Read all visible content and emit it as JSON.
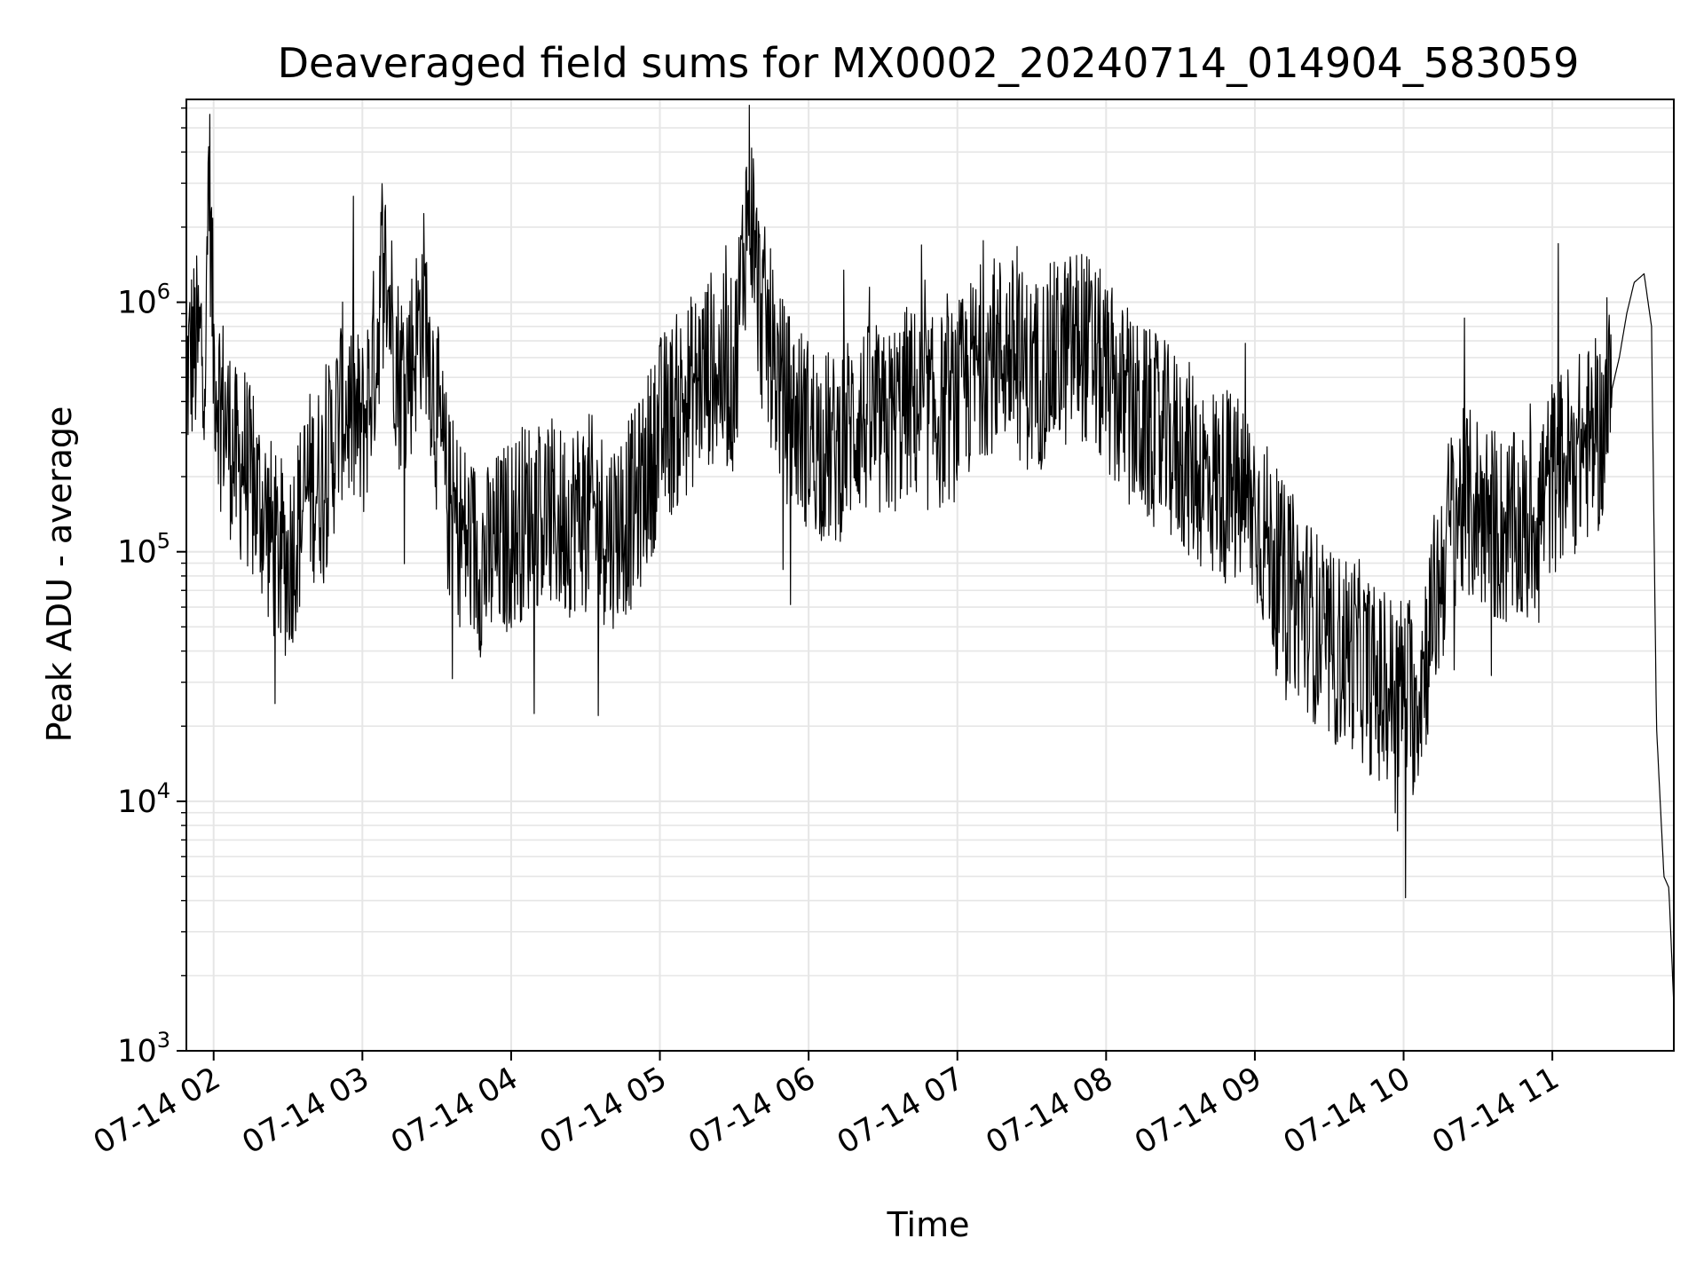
{
  "chart_data": {
    "type": "line",
    "title": "Deaveraged field sums for MX0002_20240714_014904_583059",
    "xlabel": "Time",
    "ylabel": "Peak ADU - average",
    "yscale": "log",
    "ylim": [
      1000,
      6500000
    ],
    "xlim": [
      "2024-07-14T01:49:00",
      "2024-07-14T11:49:00"
    ],
    "grid": true,
    "line_color": "#000000",
    "grid_color": "#e6e6e6",
    "x_ticks": [
      {
        "time": "2024-07-14T02:00:00",
        "label": "07-14 02"
      },
      {
        "time": "2024-07-14T03:00:00",
        "label": "07-14 03"
      },
      {
        "time": "2024-07-14T04:00:00",
        "label": "07-14 04"
      },
      {
        "time": "2024-07-14T05:00:00",
        "label": "07-14 05"
      },
      {
        "time": "2024-07-14T06:00:00",
        "label": "07-14 06"
      },
      {
        "time": "2024-07-14T07:00:00",
        "label": "07-14 07"
      },
      {
        "time": "2024-07-14T08:00:00",
        "label": "07-14 08"
      },
      {
        "time": "2024-07-14T09:00:00",
        "label": "07-14 09"
      },
      {
        "time": "2024-07-14T10:00:00",
        "label": "07-14 10"
      },
      {
        "time": "2024-07-14T11:00:00",
        "label": "07-14 11"
      }
    ],
    "y_ticks": [
      {
        "value": 1000,
        "base": "10",
        "exp": "3"
      },
      {
        "value": 10000,
        "base": "10",
        "exp": "4"
      },
      {
        "value": 100000,
        "base": "10",
        "exp": "5"
      },
      {
        "value": 1000000,
        "base": "10",
        "exp": "6"
      }
    ],
    "series": [
      {
        "x": [
          "2024-07-14T01:49:00",
          "2024-07-14T01:51:00",
          "2024-07-14T01:54:00",
          "2024-07-14T01:56:00",
          "2024-07-14T01:57:00",
          "2024-07-14T01:58:00",
          "2024-07-14T02:00:00",
          "2024-07-14T02:03:00",
          "2024-07-14T02:06:00",
          "2024-07-14T02:10:00",
          "2024-07-14T02:12:00",
          "2024-07-14T02:15:00",
          "2024-07-14T02:20:00",
          "2024-07-14T02:25:00",
          "2024-07-14T02:30:00",
          "2024-07-14T02:38:00",
          "2024-07-14T02:45:00",
          "2024-07-14T02:52:00",
          "2024-07-14T03:00:00",
          "2024-07-14T03:06:00",
          "2024-07-14T03:08:00",
          "2024-07-14T03:10:00",
          "2024-07-14T03:15:00",
          "2024-07-14T03:20:00",
          "2024-07-14T03:25:00",
          "2024-07-14T03:30:00",
          "2024-07-14T03:35:00",
          "2024-07-14T03:40:00",
          "2024-07-14T03:45:00",
          "2024-07-14T03:50:00",
          "2024-07-14T04:00:00",
          "2024-07-14T04:10:00",
          "2024-07-14T04:20:00",
          "2024-07-14T04:30:00",
          "2024-07-14T04:40:00",
          "2024-07-14T04:50:00",
          "2024-07-14T05:00:00",
          "2024-07-14T05:10:00",
          "2024-07-14T05:20:00",
          "2024-07-14T05:30:00",
          "2024-07-14T05:36:00",
          "2024-07-14T05:40:00",
          "2024-07-14T05:50:00",
          "2024-07-14T06:00:00",
          "2024-07-14T06:10:00",
          "2024-07-14T06:20:00",
          "2024-07-14T06:30:00",
          "2024-07-14T06:40:00",
          "2024-07-14T06:50:00",
          "2024-07-14T07:00:00",
          "2024-07-14T07:10:00",
          "2024-07-14T07:20:00",
          "2024-07-14T07:30:00",
          "2024-07-14T07:40:00",
          "2024-07-14T07:50:00",
          "2024-07-14T08:00:00",
          "2024-07-14T08:10:00",
          "2024-07-14T08:20:00",
          "2024-07-14T08:30:00",
          "2024-07-14T08:40:00",
          "2024-07-14T08:50:00",
          "2024-07-14T09:00:00",
          "2024-07-14T09:10:00",
          "2024-07-14T09:20:00",
          "2024-07-14T09:30:00",
          "2024-07-14T09:40:00",
          "2024-07-14T09:50:00",
          "2024-07-14T10:00:00",
          "2024-07-14T10:05:00",
          "2024-07-14T10:15:00",
          "2024-07-14T10:20:00",
          "2024-07-14T10:30:00",
          "2024-07-14T10:40:00",
          "2024-07-14T10:50:00",
          "2024-07-14T11:00:00",
          "2024-07-14T11:10:00",
          "2024-07-14T11:20:00",
          "2024-07-14T11:27:00",
          "2024-07-14T11:30:00",
          "2024-07-14T11:33:00",
          "2024-07-14T11:37:00",
          "2024-07-14T11:40:00",
          "2024-07-14T11:42:00",
          "2024-07-14T11:45:00",
          "2024-07-14T11:47:00",
          "2024-07-14T11:49:00"
        ],
        "y": [
          500000,
          620000,
          650000,
          720000,
          600000,
          4200000,
          600000,
          400000,
          300000,
          200000,
          250000,
          180000,
          150000,
          100000,
          90000,
          180000,
          200000,
          400000,
          300000,
          700000,
          1500000,
          1200000,
          500000,
          600000,
          1000000,
          350000,
          150000,
          120000,
          100000,
          90000,
          120000,
          150000,
          130000,
          150000,
          120000,
          150000,
          300000,
          400000,
          550000,
          500000,
          3000000,
          1000000,
          400000,
          300000,
          250000,
          350000,
          300000,
          400000,
          350000,
          400000,
          600000,
          650000,
          500000,
          600000,
          700000,
          500000,
          350000,
          300000,
          250000,
          200000,
          180000,
          150000,
          80000,
          60000,
          40000,
          40000,
          28000,
          28000,
          25000,
          80000,
          150000,
          150000,
          120000,
          120000,
          200000,
          250000,
          300000,
          600000,
          900000,
          1200000,
          1300000,
          800000,
          20000,
          5000,
          4500,
          1500
        ]
      }
    ]
  }
}
